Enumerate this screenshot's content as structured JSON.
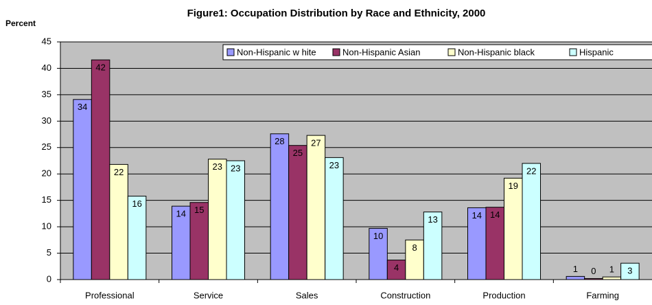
{
  "chart_data": {
    "type": "bar",
    "title": "Figure1: Occupation Distribution by Race and Ethnicity, 2000",
    "y_label": "Percent",
    "categories": [
      "Professional",
      "Service",
      "Sales",
      "Construction",
      "Production",
      "Farming"
    ],
    "series": [
      {
        "name": "Non-Hispanic w hite",
        "color": "#9999ff",
        "values": [
          34.1,
          13.9,
          27.6,
          9.7,
          13.6,
          0.6
        ],
        "value_labels": [
          "34",
          "14",
          "28",
          "10",
          "14",
          "1"
        ]
      },
      {
        "name": "Non-Hispanic Asian",
        "color": "#993366",
        "values": [
          41.6,
          14.6,
          25.4,
          3.7,
          13.7,
          0.2
        ],
        "value_labels": [
          "42",
          "15",
          "25",
          "4",
          "14",
          "0"
        ]
      },
      {
        "name": "Non-Hispanic black",
        "color": "#ffffcc",
        "values": [
          21.8,
          22.8,
          27.3,
          7.5,
          19.2,
          0.5
        ],
        "value_labels": [
          "22",
          "23",
          "27",
          "8",
          "19",
          "1"
        ]
      },
      {
        "name": "Hispanic",
        "color": "#ccffff",
        "values": [
          15.8,
          22.5,
          23.1,
          12.8,
          22.0,
          3.1
        ],
        "value_labels": [
          "16",
          "23",
          "23",
          "13",
          "22",
          "3"
        ]
      }
    ],
    "ylim": [
      0,
      45
    ],
    "yticks": [
      0,
      5,
      10,
      15,
      20,
      25,
      30,
      35,
      40,
      45
    ],
    "grid": true,
    "legend": "top"
  }
}
